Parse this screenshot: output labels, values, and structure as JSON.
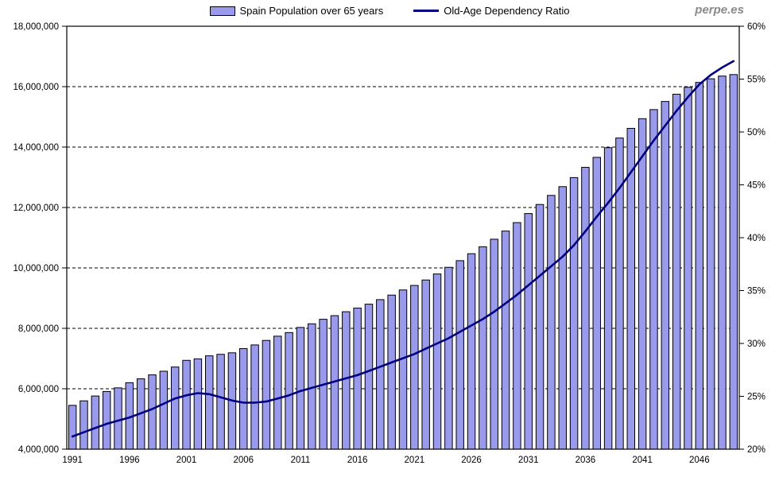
{
  "watermark": "perpe.es",
  "legend": [
    {
      "label": "Spain Population over 65 years",
      "type": "bar"
    },
    {
      "label": "Old-Age Dependency Ratio",
      "type": "line"
    }
  ],
  "colors": {
    "bar_fill": "#9a9aec",
    "bar_border": "#000000",
    "line": "#000080",
    "grid": "#000000",
    "axis": "#000000",
    "text": "#000000",
    "watermark": "#8a8a8a"
  },
  "chart_data": {
    "type": "combo",
    "title": "",
    "grid": "horizontal-dashed",
    "legend_position": "top-center",
    "x": [
      1991,
      1992,
      1993,
      1994,
      1995,
      1996,
      1997,
      1998,
      1999,
      2000,
      2001,
      2002,
      2003,
      2004,
      2005,
      2006,
      2007,
      2008,
      2009,
      2010,
      2011,
      2012,
      2013,
      2014,
      2015,
      2016,
      2017,
      2018,
      2019,
      2020,
      2021,
      2022,
      2023,
      2024,
      2025,
      2026,
      2027,
      2028,
      2029,
      2030,
      2031,
      2032,
      2033,
      2034,
      2035,
      2036,
      2037,
      2038,
      2039,
      2040,
      2041,
      2042,
      2043,
      2044,
      2045,
      2046,
      2047,
      2048,
      2049
    ],
    "series": [
      {
        "name": "Spain Population over 65 years",
        "type": "bar",
        "axis": "left",
        "values": [
          5450000,
          5600000,
          5760000,
          5910000,
          6030000,
          6200000,
          6330000,
          6460000,
          6580000,
          6720000,
          6940000,
          6990000,
          7090000,
          7140000,
          7190000,
          7330000,
          7450000,
          7600000,
          7740000,
          7860000,
          8030000,
          8150000,
          8300000,
          8420000,
          8550000,
          8670000,
          8800000,
          8950000,
          9100000,
          9270000,
          9420000,
          9600000,
          9800000,
          10020000,
          10240000,
          10470000,
          10700000,
          10950000,
          11220000,
          11500000,
          11800000,
          12100000,
          12400000,
          12690000,
          12990000,
          13330000,
          13660000,
          13980000,
          14300000,
          14620000,
          14940000,
          15240000,
          15510000,
          15750000,
          15980000,
          16140000,
          16260000,
          16350000,
          16400000
        ]
      },
      {
        "name": "Old-Age Dependency Ratio",
        "type": "line",
        "axis": "right",
        "values": [
          21.2,
          21.6,
          22.0,
          22.4,
          22.7,
          23.0,
          23.4,
          23.8,
          24.3,
          24.8,
          25.1,
          25.3,
          25.2,
          24.9,
          24.6,
          24.4,
          24.4,
          24.5,
          24.8,
          25.1,
          25.5,
          25.8,
          26.1,
          26.4,
          26.7,
          27.0,
          27.4,
          27.8,
          28.2,
          28.6,
          29.0,
          29.5,
          30.0,
          30.5,
          31.1,
          31.7,
          32.3,
          33.0,
          33.8,
          34.6,
          35.5,
          36.4,
          37.3,
          38.2,
          39.3,
          40.6,
          42.0,
          43.3,
          44.7,
          46.2,
          47.7,
          49.2,
          50.6,
          52.0,
          53.3,
          54.5,
          55.4,
          56.1,
          56.7
        ]
      }
    ],
    "left_axis": {
      "min": 4000000,
      "max": 18000000,
      "step": 2000000,
      "tick_labels": [
        "18,000,000",
        "16,000,000",
        "14,000,000",
        "12,000,000",
        "10,000,000",
        "8,000,000",
        "6,000,000",
        "4,000,000"
      ]
    },
    "right_axis": {
      "min": 20,
      "max": 60,
      "step": 5,
      "tick_labels": [
        "60%",
        "55%",
        "50%",
        "45%",
        "40%",
        "35%",
        "30%",
        "25%",
        "20%"
      ]
    },
    "x_axis": {
      "tick_years": [
        1991,
        1996,
        2001,
        2006,
        2011,
        2016,
        2021,
        2026,
        2031,
        2036,
        2041,
        2046
      ],
      "tick_labels": [
        "1991",
        "1996",
        "2001",
        "2006",
        "2011",
        "2016",
        "2021",
        "2026",
        "2031",
        "2036",
        "2041",
        "2046"
      ]
    }
  }
}
